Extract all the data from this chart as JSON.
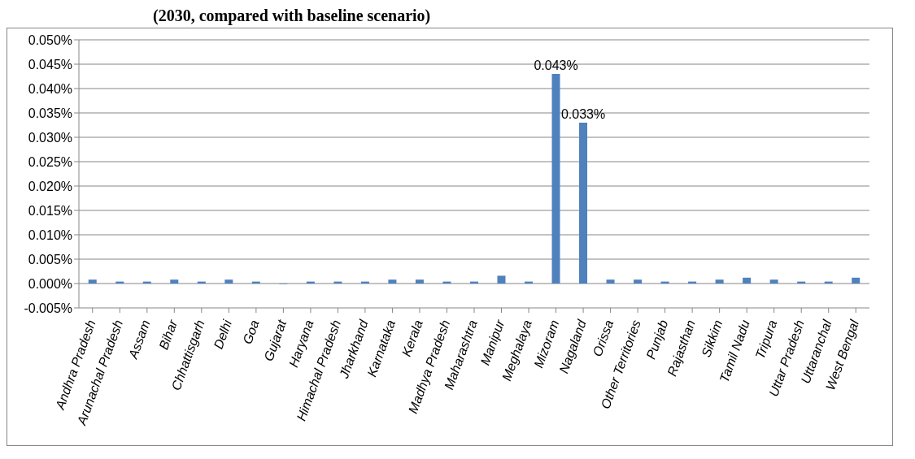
{
  "chart_data": {
    "type": "bar",
    "title": "(2030, compared with baseline scenario)",
    "categories": [
      "Andhra Pradesh",
      "Arunachal Pradesh",
      "Assam",
      "Bihar",
      "Chhattisgarh",
      "Delhi",
      "Goa",
      "Gujarat",
      "Haryana",
      "Himachal Pradesh",
      "Jharkhand",
      "Karnataka",
      "Kerala",
      "Madhya Pradesh",
      "Maharashtra",
      "Manipur",
      "Meghalaya",
      "Mizoram",
      "Nagaland",
      "Orissa",
      "Other Territories",
      "Punjab",
      "Rajasthan",
      "Sikkim",
      "Tamil Nadu",
      "Tripura",
      "Uttar Pradesh",
      "Uttaranchal",
      "West Bengal"
    ],
    "values": [
      0.0008,
      0.0004,
      0.0004,
      0.0008,
      0.0004,
      0.0008,
      0.0004,
      -0.0001,
      0.0004,
      0.0004,
      0.0004,
      0.0008,
      0.0008,
      0.0004,
      0.0004,
      0.0016,
      0.0004,
      0.043,
      0.033,
      0.0008,
      0.0008,
      0.0004,
      0.0004,
      0.0008,
      0.0012,
      0.0008,
      0.0004,
      0.0004,
      0.0012
    ],
    "value_labels": [
      null,
      null,
      null,
      null,
      null,
      null,
      null,
      null,
      null,
      null,
      null,
      null,
      null,
      null,
      null,
      null,
      null,
      "0.043%",
      "0.033%",
      null,
      null,
      null,
      null,
      null,
      null,
      null,
      null,
      null,
      null
    ],
    "color": "#4f81bd",
    "ylim": [
      -0.005,
      0.05
    ],
    "yticks": [
      {
        "value": -0.005,
        "label": "-0.005%"
      },
      {
        "value": 0,
        "label": "0.000%"
      },
      {
        "value": 0.005,
        "label": "0.005%"
      },
      {
        "value": 0.01,
        "label": "0.010%"
      },
      {
        "value": 0.015,
        "label": "0.015%"
      },
      {
        "value": 0.02,
        "label": "0.020%"
      },
      {
        "value": 0.025,
        "label": "0.025%"
      },
      {
        "value": 0.03,
        "label": "0.030%"
      },
      {
        "value": 0.035,
        "label": "0.035%"
      },
      {
        "value": 0.04,
        "label": "0.040%"
      },
      {
        "value": 0.045,
        "label": "0.045%"
      },
      {
        "value": 0.05,
        "label": "0.050%"
      }
    ],
    "grid": "y"
  }
}
